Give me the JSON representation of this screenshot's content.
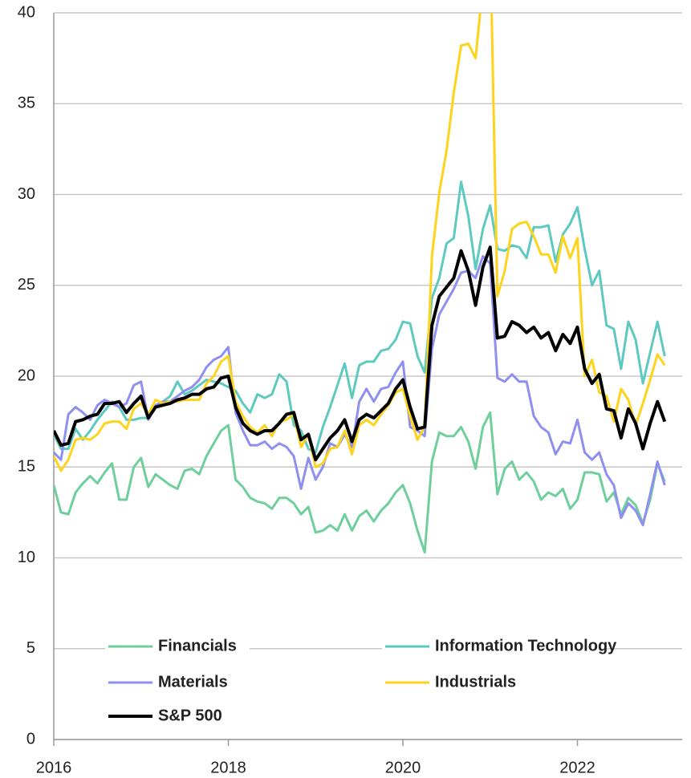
{
  "chart_data": {
    "type": "line",
    "x": [
      2016.0,
      2016.083,
      2016.167,
      2016.25,
      2016.333,
      2016.417,
      2016.5,
      2016.583,
      2016.667,
      2016.75,
      2016.833,
      2016.917,
      2017.0,
      2017.083,
      2017.167,
      2017.25,
      2017.333,
      2017.417,
      2017.5,
      2017.583,
      2017.667,
      2017.75,
      2017.833,
      2017.917,
      2018.0,
      2018.083,
      2018.167,
      2018.25,
      2018.333,
      2018.417,
      2018.5,
      2018.583,
      2018.667,
      2018.75,
      2018.833,
      2018.917,
      2019.0,
      2019.083,
      2019.167,
      2019.25,
      2019.333,
      2019.417,
      2019.5,
      2019.583,
      2019.667,
      2019.75,
      2019.833,
      2019.917,
      2020.0,
      2020.083,
      2020.167,
      2020.25,
      2020.333,
      2020.417,
      2020.5,
      2020.583,
      2020.667,
      2020.75,
      2020.833,
      2020.917,
      2021.0,
      2021.083,
      2021.167,
      2021.25,
      2021.333,
      2021.417,
      2021.5,
      2021.583,
      2021.667,
      2021.75,
      2021.833,
      2021.917,
      2022.0,
      2022.083,
      2022.167,
      2022.25,
      2022.333,
      2022.417,
      2022.5,
      2022.583,
      2022.667,
      2022.75,
      2022.833,
      2022.917,
      2023.0
    ],
    "series": [
      {
        "name": "Financials",
        "color": "#6fcf9c",
        "width": 3,
        "values": [
          14.0,
          12.5,
          12.4,
          13.6,
          14.1,
          14.5,
          14.1,
          14.7,
          15.2,
          13.2,
          13.2,
          15.0,
          15.5,
          13.9,
          14.6,
          14.3,
          14.0,
          13.8,
          14.8,
          14.9,
          14.6,
          15.6,
          16.3,
          17.0,
          17.3,
          14.3,
          13.9,
          13.3,
          13.1,
          13.0,
          12.7,
          13.3,
          13.3,
          13.0,
          12.4,
          12.8,
          11.4,
          11.5,
          11.8,
          11.5,
          12.4,
          11.5,
          12.3,
          12.6,
          12.0,
          12.6,
          13.0,
          13.6,
          14.0,
          13.0,
          11.5,
          10.3,
          15.3,
          16.9,
          16.7,
          16.7,
          17.2,
          16.4,
          14.9,
          17.2,
          18.0,
          13.5,
          14.9,
          15.3,
          14.3,
          14.7,
          14.2,
          13.2,
          13.6,
          13.4,
          13.8,
          12.7,
          13.2,
          14.7,
          14.7,
          14.6,
          13.1,
          13.6,
          12.4,
          13.3,
          12.9,
          11.9,
          13.2,
          15.2,
          14.2
        ]
      },
      {
        "name": "Information Technology",
        "color": "#5ec9c1",
        "width": 3,
        "values": [
          16.8,
          16.0,
          16.0,
          17.1,
          16.5,
          17.0,
          17.6,
          18.1,
          18.6,
          18.3,
          17.6,
          17.6,
          17.7,
          17.7,
          18.4,
          18.6,
          18.9,
          19.7,
          19.0,
          19.2,
          19.5,
          19.8,
          19.7,
          19.6,
          19.4,
          19.2,
          18.5,
          18.0,
          19.0,
          18.8,
          19.0,
          20.1,
          19.7,
          17.3,
          17.0,
          16.0,
          15.8,
          17.2,
          18.3,
          19.5,
          20.7,
          18.8,
          20.6,
          20.8,
          20.8,
          21.4,
          21.5,
          22.0,
          23.0,
          22.9,
          21.1,
          20.2,
          24.3,
          25.4,
          27.3,
          27.6,
          30.7,
          28.8,
          25.9,
          28.1,
          29.4,
          27.0,
          26.9,
          27.2,
          27.1,
          26.5,
          28.2,
          28.2,
          28.3,
          26.3,
          27.8,
          28.4,
          29.3,
          27.0,
          25.0,
          25.8,
          22.8,
          22.6,
          20.4,
          23.0,
          22.0,
          19.6,
          21.3,
          23.0,
          21.1
        ]
      },
      {
        "name": "Materials",
        "color": "#8f8ff0",
        "width": 3,
        "values": [
          15.8,
          15.4,
          17.9,
          18.3,
          18.0,
          17.6,
          18.4,
          18.7,
          18.5,
          18.3,
          18.5,
          19.5,
          19.7,
          17.6,
          18.4,
          18.6,
          18.6,
          18.9,
          19.2,
          19.4,
          19.8,
          20.5,
          20.9,
          21.1,
          21.6,
          18.0,
          17.0,
          16.2,
          16.2,
          16.4,
          16.0,
          16.3,
          16.1,
          15.6,
          13.8,
          15.5,
          14.3,
          15.0,
          16.3,
          16.1,
          16.8,
          16.1,
          18.6,
          19.3,
          18.6,
          19.3,
          19.4,
          20.2,
          20.8,
          17.2,
          17.0,
          16.7,
          21.5,
          23.4,
          24.1,
          24.8,
          25.7,
          25.8,
          25.4,
          26.6,
          26.2,
          19.9,
          19.7,
          20.1,
          19.7,
          19.7,
          17.8,
          17.2,
          16.9,
          15.7,
          16.4,
          16.3,
          17.6,
          15.8,
          15.4,
          15.8,
          14.6,
          14.0,
          12.2,
          13.0,
          12.6,
          11.8,
          13.5,
          15.3,
          14.0
        ]
      },
      {
        "name": "Industrials",
        "color": "#fdd31c",
        "width": 3,
        "values": [
          15.6,
          14.8,
          15.4,
          16.5,
          16.6,
          16.5,
          16.8,
          17.4,
          17.5,
          17.5,
          17.1,
          18.2,
          18.5,
          17.9,
          18.7,
          18.5,
          18.6,
          18.6,
          18.7,
          18.7,
          18.7,
          19.6,
          20.0,
          20.8,
          21.1,
          18.6,
          17.8,
          17.2,
          16.9,
          17.3,
          16.7,
          17.5,
          17.6,
          17.9,
          16.1,
          16.8,
          15.0,
          15.2,
          16.0,
          16.1,
          17.0,
          15.7,
          17.3,
          17.6,
          17.3,
          17.9,
          18.4,
          19.1,
          19.3,
          17.8,
          16.5,
          17.2,
          26.6,
          30.1,
          32.4,
          35.6,
          38.2,
          38.3,
          37.5,
          41.5,
          44.0,
          24.4,
          25.8,
          28.1,
          28.4,
          28.5,
          27.7,
          26.7,
          26.7,
          25.7,
          27.7,
          26.5,
          27.6,
          20.0,
          20.9,
          19.1,
          18.9,
          17.5,
          19.3,
          18.7,
          17.3,
          18.5,
          19.8,
          21.2,
          20.6
        ]
      },
      {
        "name": "S&P 500",
        "color": "#000000",
        "width": 4,
        "values": [
          17.0,
          16.2,
          16.3,
          17.5,
          17.6,
          17.8,
          17.9,
          18.5,
          18.5,
          18.6,
          18.0,
          18.5,
          18.9,
          17.7,
          18.3,
          18.4,
          18.5,
          18.7,
          18.8,
          19.0,
          19.0,
          19.3,
          19.4,
          19.9,
          20.0,
          18.3,
          17.4,
          17.0,
          16.8,
          17.0,
          17.0,
          17.4,
          17.9,
          18.0,
          16.5,
          16.8,
          15.4,
          16.0,
          16.6,
          17.0,
          17.6,
          16.4,
          17.6,
          17.9,
          17.7,
          18.1,
          18.5,
          19.3,
          19.8,
          18.3,
          17.1,
          17.2,
          22.8,
          24.4,
          24.9,
          25.4,
          26.9,
          25.8,
          23.9,
          26.0,
          27.1,
          22.1,
          22.2,
          23.0,
          22.8,
          22.4,
          22.7,
          22.1,
          22.4,
          21.4,
          22.3,
          21.8,
          22.7,
          20.4,
          19.6,
          20.1,
          18.2,
          18.1,
          16.6,
          18.2,
          17.4,
          16.0,
          17.4,
          18.6,
          17.5
        ]
      }
    ],
    "xlim": [
      2016,
      2023.2
    ],
    "xticks": [
      2016,
      2018,
      2020,
      2022
    ],
    "ylim": [
      0,
      40
    ],
    "yticks": [
      0,
      5,
      10,
      15,
      20,
      25,
      30,
      35,
      40
    ],
    "grid": true,
    "legend": "bottom"
  }
}
